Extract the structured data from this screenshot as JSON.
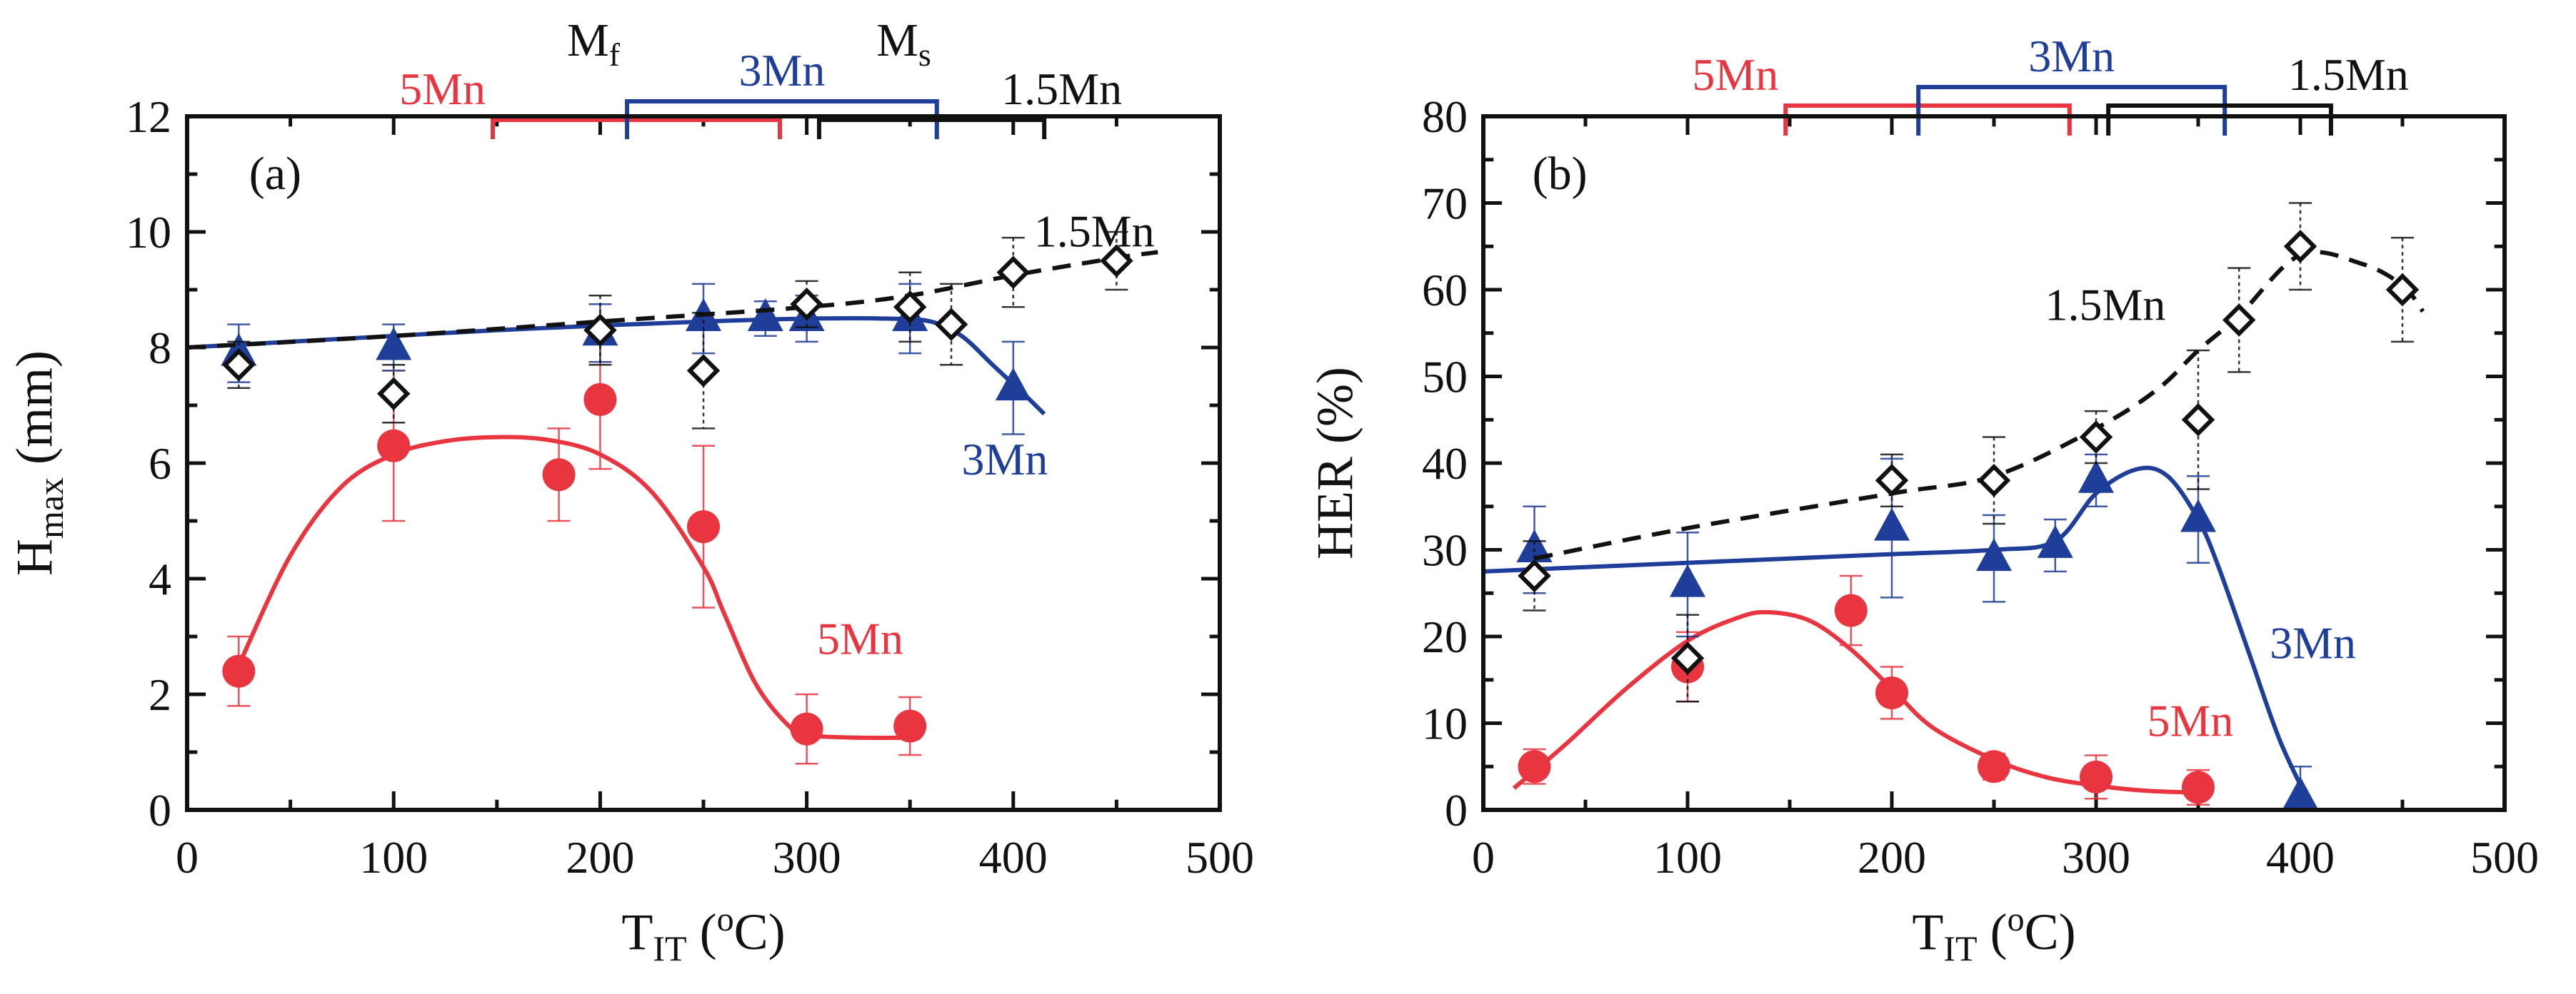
{
  "colors": {
    "mn5": "#e8353f",
    "mn3": "#1f3e9a",
    "mn15": "#111111",
    "axis": "#111111"
  },
  "chart_data": [
    {
      "id": "a",
      "type": "scatter",
      "panel_label": "(a)",
      "ylabel_main": "H",
      "ylabel_sub": "max",
      "ylabel_unit": " (mm)",
      "xlabel_main": "T",
      "xlabel_sub": "IT",
      "xlabel_unit_pre": " (",
      "xlabel_unit_sup": "o",
      "xlabel_unit_post": "C)",
      "xlim": [
        0,
        500
      ],
      "ylim": [
        0,
        12
      ],
      "xticks": [
        0,
        100,
        200,
        300,
        400,
        500
      ],
      "yticks": [
        0,
        2,
        4,
        6,
        8,
        10,
        12
      ],
      "xtick_labels": [
        "0",
        "100",
        "200",
        "300",
        "400",
        "500"
      ],
      "ytick_labels": [
        "0",
        "2",
        "4",
        "6",
        "8",
        "10",
        "12"
      ],
      "ranges": [
        {
          "label": "5Mn",
          "color": "mn5",
          "start": 148,
          "end": 287
        },
        {
          "label": "3Mn",
          "color": "mn3",
          "start": 213,
          "end": 363
        },
        {
          "label": "1.5Mn",
          "color": "mn15",
          "start": 306,
          "end": 415
        }
      ],
      "range_labels": {
        "mf_main": "M",
        "mf_sub": "f",
        "ms_main": "M",
        "ms_sub": "s"
      },
      "series": [
        {
          "name": "5Mn",
          "color": "mn5",
          "marker": "circle",
          "line": "solid",
          "label": "5Mn",
          "label_at": [
            305,
            2.7
          ],
          "x": [
            25,
            100,
            180,
            200,
            250,
            300,
            350
          ],
          "y": [
            2.4,
            6.3,
            5.8,
            7.1,
            4.9,
            1.4,
            1.45
          ],
          "err": [
            0.6,
            1.3,
            0.8,
            1.2,
            1.4,
            0.6,
            0.5
          ],
          "fit_x": [
            25,
            50,
            75,
            100,
            125,
            150,
            175,
            200,
            225,
            250,
            260,
            275,
            290,
            300,
            325,
            350,
            355
          ],
          "fit_y": [
            2.5,
            4.4,
            5.6,
            6.15,
            6.38,
            6.45,
            6.4,
            6.15,
            5.5,
            4.2,
            3.4,
            2.2,
            1.5,
            1.3,
            1.25,
            1.25,
            1.25
          ]
        },
        {
          "name": "3Mn",
          "color": "mn3",
          "marker": "triangle",
          "line": "solid",
          "label": "3Mn",
          "label_at": [
            375,
            5.8
          ],
          "x": [
            25,
            100,
            200,
            250,
            280,
            300,
            350,
            400
          ],
          "y": [
            7.9,
            8.0,
            8.25,
            8.5,
            8.5,
            8.5,
            8.5,
            7.3
          ],
          "err": [
            0.5,
            0.4,
            0.5,
            0.6,
            0.3,
            0.4,
            0.6,
            0.8
          ],
          "fit_x": [
            0,
            50,
            100,
            150,
            200,
            250,
            300,
            340,
            360,
            375,
            390,
            405,
            415
          ],
          "fit_y": [
            8.0,
            8.1,
            8.2,
            8.3,
            8.38,
            8.45,
            8.5,
            8.5,
            8.45,
            8.2,
            7.7,
            7.2,
            6.85
          ]
        },
        {
          "name": "1.5Mn",
          "color": "mn15",
          "marker": "diamond-open",
          "line": "dashed",
          "label": "1.5Mn",
          "label_at": [
            410,
            9.75
          ],
          "x": [
            25,
            100,
            200,
            250,
            300,
            350,
            370,
            400,
            450
          ],
          "y": [
            7.7,
            7.2,
            8.3,
            7.6,
            8.75,
            8.7,
            8.4,
            9.3,
            9.5
          ],
          "err": [
            0.4,
            0.5,
            0.6,
            1.0,
            0.4,
            0.6,
            0.7,
            0.6,
            0.5
          ],
          "fit_x": [
            0,
            100,
            200,
            300,
            350,
            400,
            450,
            470
          ],
          "fit_y": [
            8.0,
            8.2,
            8.45,
            8.7,
            8.9,
            9.25,
            9.55,
            9.65
          ]
        }
      ]
    },
    {
      "id": "b",
      "type": "scatter",
      "panel_label": "(b)",
      "ylabel_main": "HER",
      "ylabel_sub": "",
      "ylabel_unit": " (%)",
      "xlabel_main": "T",
      "xlabel_sub": "IT",
      "xlabel_unit_pre": " (",
      "xlabel_unit_sup": "o",
      "xlabel_unit_post": "C)",
      "xlim": [
        0,
        500
      ],
      "ylim": [
        0,
        80
      ],
      "xticks": [
        0,
        100,
        200,
        300,
        400,
        500
      ],
      "yticks": [
        0,
        10,
        20,
        30,
        40,
        50,
        60,
        70,
        80
      ],
      "xtick_labels": [
        "0",
        "100",
        "200",
        "300",
        "400",
        "500"
      ],
      "ytick_labels": [
        "0",
        "10",
        "20",
        "30",
        "40",
        "50",
        "60",
        "70",
        "80"
      ],
      "ranges": [
        {
          "label": "5Mn",
          "color": "mn5",
          "start": 148,
          "end": 287
        },
        {
          "label": "3Mn",
          "color": "mn3",
          "start": 213,
          "end": 363
        },
        {
          "label": "1.5Mn",
          "color": "mn15",
          "start": 306,
          "end": 415
        }
      ],
      "series": [
        {
          "name": "5Mn",
          "color": "mn5",
          "marker": "circle",
          "line": "solid",
          "label": "5Mn",
          "label_at": [
            325,
            8.5
          ],
          "x": [
            25,
            100,
            180,
            200,
            250,
            300,
            350
          ],
          "y": [
            5.0,
            16.5,
            23.0,
            13.5,
            5.0,
            3.8,
            2.6
          ],
          "err": [
            2.0,
            4.0,
            4.0,
            3.0,
            1.5,
            2.5,
            2.0
          ],
          "fit_x": [
            15,
            40,
            70,
            100,
            125,
            140,
            160,
            180,
            200,
            220,
            250,
            275,
            300,
            325,
            350,
            355
          ],
          "fit_y": [
            2.5,
            7.5,
            14.0,
            19.5,
            22.2,
            22.8,
            21.8,
            18.5,
            14.0,
            9.5,
            5.8,
            3.8,
            2.8,
            2.2,
            2.0,
            2.0
          ]
        },
        {
          "name": "3Mn",
          "color": "mn3",
          "marker": "triangle",
          "line": "solid",
          "label": "3Mn",
          "label_at": [
            385,
            17.5
          ],
          "x": [
            25,
            100,
            200,
            250,
            280,
            300,
            350,
            400
          ],
          "y": [
            30.0,
            26.0,
            32.5,
            29.0,
            30.5,
            38.0,
            33.5,
            1.5
          ],
          "err": [
            5.0,
            6.0,
            8.0,
            5.0,
            3.0,
            3.0,
            5.0,
            3.5
          ],
          "fit_x": [
            0,
            50,
            100,
            150,
            200,
            250,
            280,
            300,
            320,
            335,
            350,
            360,
            375,
            390,
            405
          ],
          "fit_y": [
            27.5,
            28.0,
            28.5,
            29.0,
            29.5,
            30.0,
            31.0,
            36.5,
            39.3,
            38.5,
            33.5,
            28.0,
            18.0,
            8.0,
            0.5
          ]
        },
        {
          "name": "1.5Mn",
          "color": "mn15",
          "marker": "diamond-open",
          "line": "dashed",
          "label": "1.5Mn",
          "label_at": [
            275,
            56.5
          ],
          "x": [
            25,
            100,
            200,
            250,
            300,
            350,
            370,
            400,
            450
          ],
          "y": [
            27.0,
            17.5,
            38.0,
            38.0,
            43.0,
            45.0,
            56.5,
            65.0,
            60.0
          ],
          "err": [
            4.0,
            5.0,
            3.0,
            5.0,
            3.0,
            8.0,
            6.0,
            5.0,
            6.0
          ],
          "fit_x": [
            25,
            100,
            200,
            250,
            300,
            330,
            350,
            370,
            400,
            430,
            450,
            460
          ],
          "fit_y": [
            29.0,
            32.5,
            36.5,
            38.5,
            44.0,
            48.5,
            53.0,
            57.0,
            64.0,
            63.0,
            60.5,
            57.5
          ]
        }
      ]
    }
  ]
}
